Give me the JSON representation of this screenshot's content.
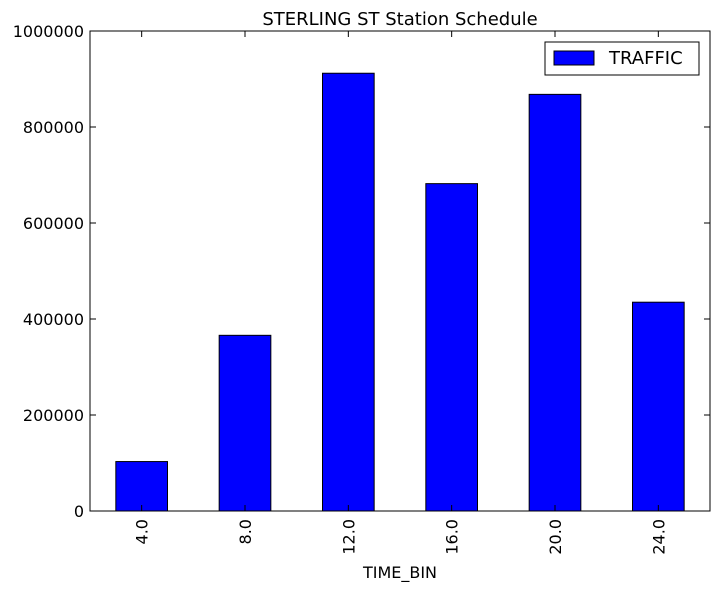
{
  "chart_data": {
    "type": "bar",
    "title": "STERLING ST Station Schedule",
    "xlabel": "TIME_BIN",
    "ylabel": "",
    "categories": [
      "4.0",
      "8.0",
      "12.0",
      "16.0",
      "20.0",
      "24.0"
    ],
    "series": [
      {
        "name": "TRAFFIC",
        "values": [
          103000,
          366000,
          912000,
          682000,
          868000,
          435000
        ],
        "color": "#0000ff"
      }
    ],
    "ylim": [
      0,
      1000000
    ],
    "yticks": [
      "0",
      "200000",
      "400000",
      "600000",
      "800000",
      "1000000"
    ],
    "ytick_values": [
      0,
      200000,
      400000,
      600000,
      800000,
      1000000
    ],
    "grid": false,
    "legend_position": "top-right"
  }
}
